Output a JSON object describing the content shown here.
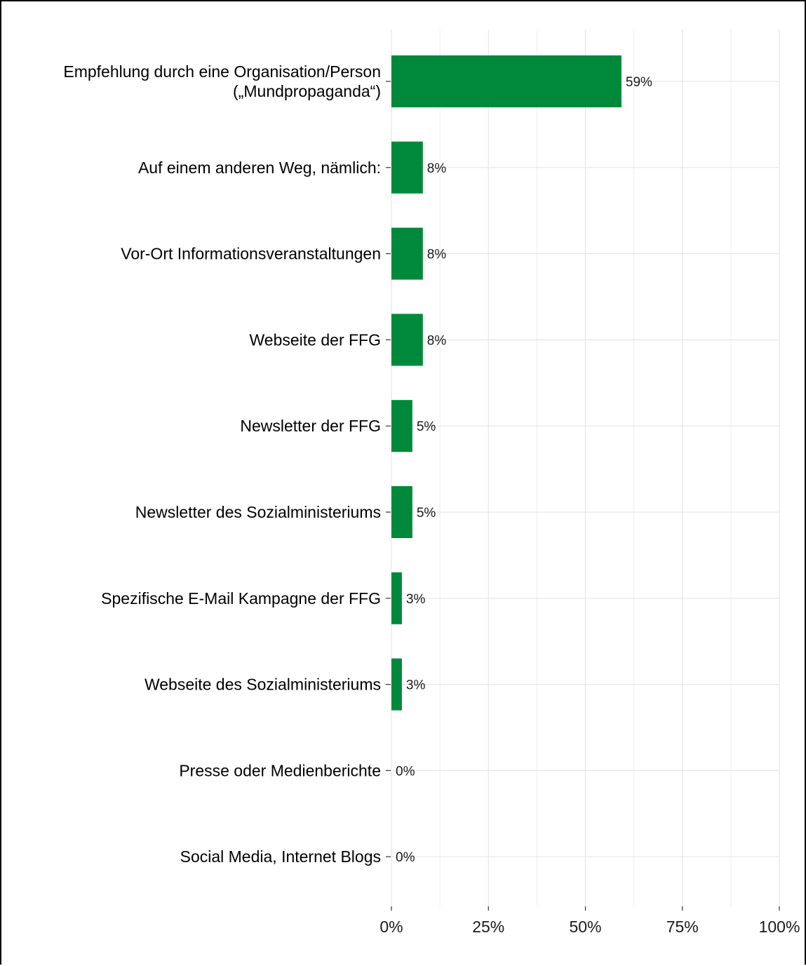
{
  "chart_data": {
    "type": "bar",
    "orientation": "horizontal",
    "title": "",
    "xlabel": "",
    "ylabel": "",
    "xlim": [
      0,
      100
    ],
    "x_ticks": [
      "0%",
      "25%",
      "50%",
      "75%",
      "100%"
    ],
    "grid": true,
    "bar_color": "#00893A",
    "categories": [
      [
        "Empfehlung durch eine Organisation/Person",
        "(„Mundpropaganda“)"
      ],
      [
        "Auf einem anderen Weg, nämlich:"
      ],
      [
        "Vor-Ort Informationsveranstaltungen"
      ],
      [
        "Webseite der FFG"
      ],
      [
        "Newsletter der FFG"
      ],
      [
        "Newsletter des Sozialministeriums"
      ],
      [
        "Spezifische E-Mail Kampagne der FFG"
      ],
      [
        "Webseite des Sozialministeriums"
      ],
      [
        "Presse oder Medienberichte"
      ],
      [
        "Social Media, Internet Blogs"
      ]
    ],
    "values": [
      59.3,
      8.1,
      8.1,
      8.1,
      5.4,
      5.4,
      2.7,
      2.7,
      0,
      0
    ],
    "value_labels": [
      "59%",
      "8%",
      "8%",
      "8%",
      "5%",
      "5%",
      "3%",
      "3%",
      "0%",
      "0%"
    ]
  }
}
